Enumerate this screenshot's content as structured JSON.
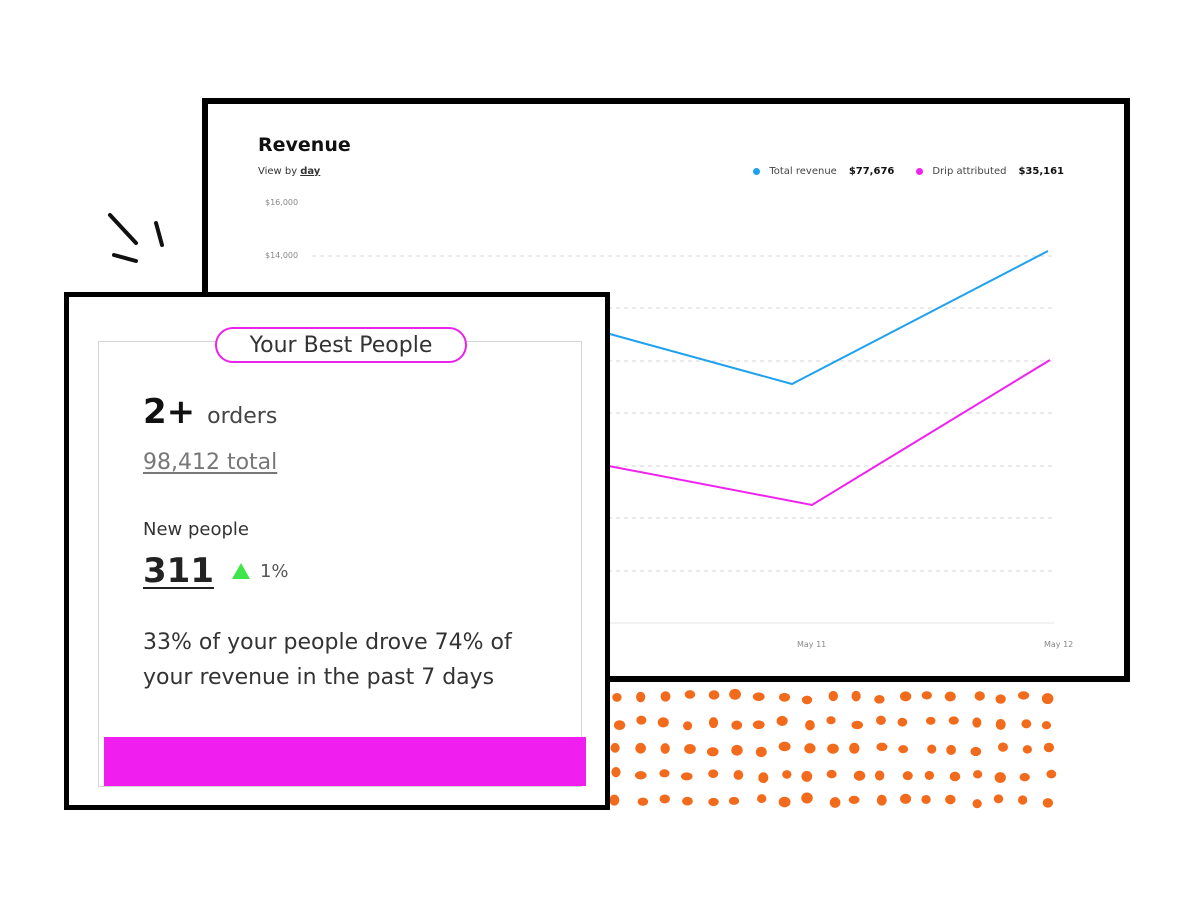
{
  "revenue": {
    "title": "Revenue",
    "view_by_label": "View by",
    "view_by_value": "day",
    "legend": [
      {
        "label": "Total revenue",
        "value": "$77,676",
        "color": "#1ea1ee"
      },
      {
        "label": "Drip attributed",
        "value": "$35,161",
        "color": "#ef22ee"
      }
    ]
  },
  "chart_data": {
    "type": "line",
    "title": "Revenue",
    "y_tick_labels": [
      "$16,000",
      "$14,000"
    ],
    "x_tick_labels": [
      "May 11",
      "May 12"
    ],
    "grid": true,
    "legend_position": "top-right",
    "series": [
      {
        "name": "Total revenue",
        "color": "#1ea1ee"
      },
      {
        "name": "Drip attributed",
        "color": "#ef22ee"
      }
    ]
  },
  "best_people": {
    "title": "Your Best People",
    "orders_count": "2+",
    "orders_label": "orders",
    "orders_total": "98,412 total",
    "new_people_label": "New people",
    "new_people_count": "311",
    "new_people_change": "1%",
    "trend_icon": "triangle-up-icon",
    "summary": "33% of your people drove 74% of your revenue in the past 7 days",
    "accent_color": "#f01ff0"
  }
}
